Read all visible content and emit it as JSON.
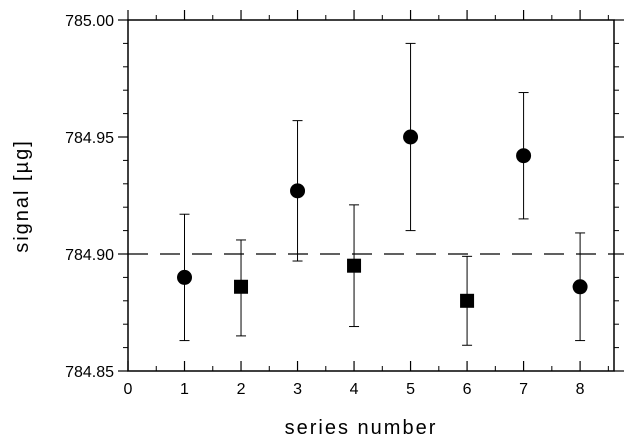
{
  "chart_data": {
    "type": "scatter",
    "title": "",
    "xlabel": "series number",
    "ylabel": "signal [µg]",
    "xlim": [
      0,
      8.6
    ],
    "ylim": [
      784.85,
      785.0
    ],
    "x_ticks": [
      0,
      1,
      2,
      3,
      4,
      5,
      6,
      7,
      8
    ],
    "x_tick_labels": [
      "0",
      "1",
      "2",
      "3",
      "4",
      "5",
      "6",
      "7",
      "8"
    ],
    "y_ticks": [
      784.85,
      784.9,
      784.95,
      785.0
    ],
    "y_tick_labels": [
      "784.85",
      "784.90",
      "784.95",
      "785.00"
    ],
    "grid": false,
    "reference_line": {
      "y": 784.9,
      "style": "dashed"
    },
    "points": [
      {
        "x": 1,
        "y": 784.89,
        "low": 784.863,
        "high": 784.917,
        "marker": "circle"
      },
      {
        "x": 2,
        "y": 784.886,
        "low": 784.865,
        "high": 784.906,
        "marker": "square"
      },
      {
        "x": 3,
        "y": 784.927,
        "low": 784.897,
        "high": 784.957,
        "marker": "circle"
      },
      {
        "x": 4,
        "y": 784.895,
        "low": 784.869,
        "high": 784.921,
        "marker": "square"
      },
      {
        "x": 5,
        "y": 784.95,
        "low": 784.91,
        "high": 784.99,
        "marker": "circle"
      },
      {
        "x": 6,
        "y": 784.88,
        "low": 784.861,
        "high": 784.899,
        "marker": "square"
      },
      {
        "x": 7,
        "y": 784.942,
        "low": 784.915,
        "high": 784.969,
        "marker": "circle"
      },
      {
        "x": 8,
        "y": 784.886,
        "low": 784.863,
        "high": 784.909,
        "marker": "circle"
      }
    ],
    "colors": {
      "marker": "#000000",
      "axes": "#000000",
      "reference_line": "#000000"
    }
  }
}
